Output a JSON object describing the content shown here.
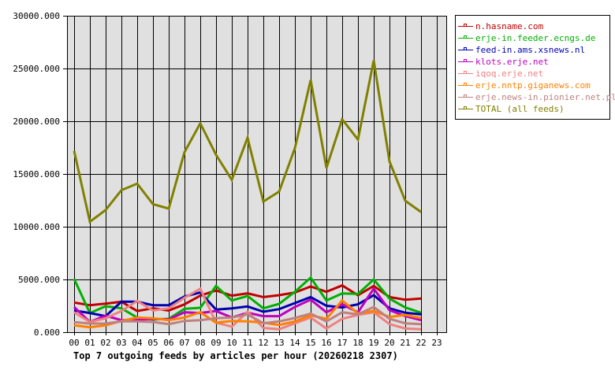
{
  "chart_data": {
    "type": "line",
    "title": "Top 7 outgoing feeds by articles per hour (20260218 2307)",
    "xlabel": "",
    "ylabel": "",
    "ylim": [
      0,
      30000
    ],
    "yticks": [
      0,
      5000,
      10000,
      15000,
      20000,
      25000,
      30000
    ],
    "ytick_labels": [
      "0.000",
      "5000.000",
      "10000.000",
      "15000.000",
      "20000.000",
      "25000.000",
      "30000.000"
    ],
    "categories": [
      "00",
      "01",
      "02",
      "03",
      "04",
      "05",
      "06",
      "07",
      "08",
      "09",
      "10",
      "11",
      "12",
      "13",
      "14",
      "15",
      "16",
      "17",
      "18",
      "19",
      "20",
      "21",
      "22",
      "23"
    ],
    "grid": true,
    "legend_position": "right",
    "series": [
      {
        "name": "n.hasname.com",
        "color": "#c00000",
        "values": [
          2810,
          2560,
          2710,
          2890,
          2010,
          2260,
          2060,
          2640,
          3460,
          3960,
          3460,
          3680,
          3330,
          3510,
          3760,
          4330,
          3830,
          4430,
          3510,
          4380,
          3330,
          3080,
          3190,
          null
        ]
      },
      {
        "name": "erje-in.feeder.ecngs.de",
        "color": "#00b000",
        "values": [
          5050,
          1810,
          2460,
          2260,
          1390,
          1200,
          1270,
          2220,
          2310,
          4380,
          3010,
          3430,
          2260,
          2690,
          3830,
          5170,
          3010,
          3680,
          3630,
          5000,
          3190,
          2340,
          1840,
          null
        ]
      },
      {
        "name": "feed-in.ams.xsnews.nl",
        "color": "#0000b0",
        "values": [
          2060,
          1810,
          1520,
          2890,
          2890,
          2560,
          2560,
          3380,
          3760,
          2140,
          2260,
          2440,
          1940,
          2190,
          2760,
          3330,
          2510,
          2340,
          2640,
          3510,
          2260,
          1840,
          1690,
          null
        ]
      },
      {
        "name": "klots.erje.net",
        "color": "#c000c0",
        "values": [
          2390,
          970,
          1570,
          1140,
          1190,
          1270,
          1220,
          1890,
          1810,
          2010,
          1390,
          1840,
          1520,
          1520,
          2390,
          3080,
          1890,
          2640,
          1890,
          4130,
          2090,
          1520,
          1140,
          null
        ]
      },
      {
        "name": "iqoq.erje.net",
        "color": "#f08080",
        "values": [
          1890,
          970,
          1320,
          2010,
          2960,
          2060,
          2260,
          3260,
          4130,
          900,
          520,
          1940,
          400,
          280,
          840,
          1390,
          350,
          1270,
          1640,
          1890,
          770,
          350,
          280,
          null
        ]
      },
      {
        "name": "erje.nntp.giganews.com",
        "color": "#ff8000",
        "values": [
          650,
          470,
          650,
          1070,
          1390,
          1320,
          1140,
          1390,
          1890,
          900,
          1070,
          1020,
          900,
          690,
          1020,
          1590,
          1270,
          3010,
          1770,
          2010,
          1440,
          1640,
          1340,
          null
        ]
      },
      {
        "name": "erje.news-in.pionier.net.pl",
        "color": "#c08080",
        "values": [
          950,
          820,
          820,
          1020,
          1020,
          970,
          770,
          1070,
          1140,
          1320,
          1390,
          1690,
          840,
          1020,
          1340,
          1770,
          1020,
          1890,
          1690,
          2390,
          1270,
          840,
          770,
          null
        ]
      },
      {
        "name": "TOTAL (all feeds)",
        "color": "#808000",
        "values": [
          17190,
          10470,
          11590,
          13460,
          14080,
          12140,
          11720,
          17070,
          19800,
          16810,
          14450,
          18430,
          12390,
          13330,
          17440,
          23900,
          15570,
          20170,
          18260,
          25770,
          16190,
          12460,
          11390,
          null
        ]
      }
    ]
  },
  "style": {
    "plot_bg": "#e0e0e0",
    "grid_color": "#000000",
    "page_bg": "#ffffff"
  }
}
